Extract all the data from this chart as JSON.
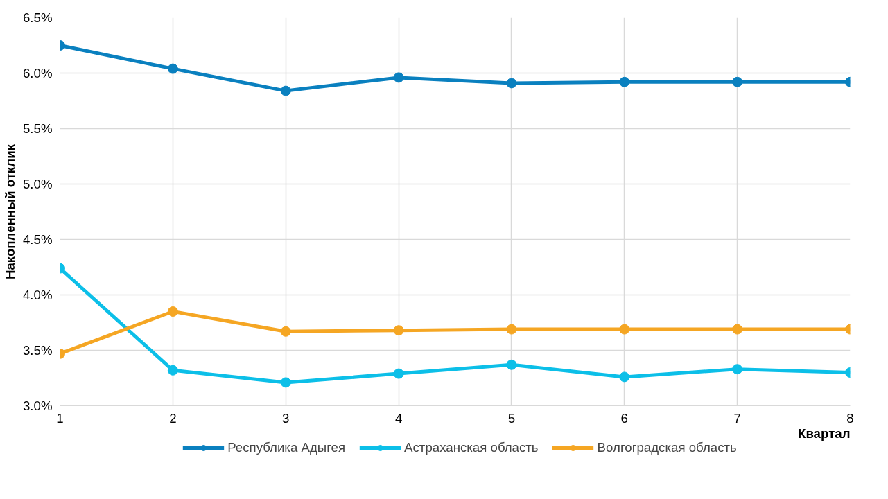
{
  "chart_data": {
    "type": "line",
    "xlabel": "Квартал",
    "ylabel": "Накопленный отклик",
    "x": [
      1,
      2,
      3,
      4,
      5,
      6,
      7,
      8
    ],
    "series": [
      {
        "name": "Республика Адыгея",
        "color": "#0a80bf",
        "values": [
          6.25,
          6.04,
          5.84,
          5.96,
          5.91,
          5.92,
          5.92,
          5.92
        ]
      },
      {
        "name": "Астраханская область",
        "color": "#0cbfe8",
        "values": [
          4.24,
          3.32,
          3.21,
          3.29,
          3.37,
          3.26,
          3.33,
          3.3
        ]
      },
      {
        "name": "Волгоградская область",
        "color": "#f5a623",
        "values": [
          3.47,
          3.85,
          3.67,
          3.68,
          3.69,
          3.69,
          3.69,
          3.69
        ]
      }
    ],
    "xlim": [
      1,
      8
    ],
    "xticks": [
      1,
      2,
      3,
      4,
      5,
      6,
      7,
      8
    ],
    "ylim": [
      3.0,
      6.5
    ],
    "yticks": [
      {
        "value": 3.0,
        "label": "3.0%"
      },
      {
        "value": 3.5,
        "label": "3.5%"
      },
      {
        "value": 4.0,
        "label": "4.0%"
      },
      {
        "value": 4.5,
        "label": "4.5%"
      },
      {
        "value": 5.0,
        "label": "5.0%"
      },
      {
        "value": 5.5,
        "label": "5.5%"
      },
      {
        "value": 6.0,
        "label": "6.0%"
      },
      {
        "value": 6.5,
        "label": "6.5%"
      }
    ],
    "grid": true,
    "legend": "bottom",
    "marker": "circle",
    "line_style": "solid"
  }
}
